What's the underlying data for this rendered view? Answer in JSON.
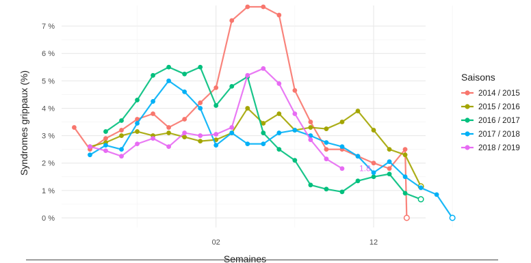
{
  "chart_data": {
    "type": "line",
    "title": "",
    "xlabel": "Semaines",
    "ylabel": "Syndromes grippaux (%)",
    "x_tick_labels": [
      {
        "label": "02",
        "x": 8
      },
      {
        "label": "12",
        "x": 18
      }
    ],
    "y_ticks": [
      0,
      1,
      2,
      3,
      4,
      5,
      6,
      7
    ],
    "y_tick_labels": [
      "0 %",
      "1 %",
      "2 %",
      "3 %",
      "4 %",
      "5 %",
      "6 %",
      "7 %"
    ],
    "xlim": [
      -1.8,
      21.3
    ],
    "ylim": [
      -0.35,
      7.75
    ],
    "grid": true,
    "legend": {
      "title": "Saisons",
      "placement": "right"
    },
    "annotation": {
      "text": "1.8",
      "series": "2018 / 2019",
      "x": 17,
      "y": 1.8
    },
    "series": [
      {
        "name": "2014 / 2015",
        "color": "#F8766D",
        "x": [
          -1,
          0,
          1,
          2,
          3,
          4,
          5,
          6,
          7,
          8,
          9,
          10,
          11,
          12,
          13,
          14,
          15,
          16,
          17,
          18,
          19,
          20
        ],
        "values": [
          3.3,
          2.5,
          2.9,
          3.2,
          3.6,
          3.8,
          3.3,
          3.6,
          4.2,
          4.75,
          7.2,
          7.7,
          7.7,
          7.4,
          4.65,
          3.5,
          2.5,
          2.5,
          2.25,
          2.0,
          1.8,
          2.5
        ],
        "end": {
          "x": 20.1,
          "y": 0.0
        }
      },
      {
        "name": "2015 / 2016",
        "color": "#A3A500",
        "x": [
          0,
          1,
          2,
          3,
          4,
          5,
          6,
          7,
          8,
          9,
          10,
          11,
          12,
          13,
          14,
          15,
          16,
          17,
          18,
          19,
          20
        ],
        "values": [
          2.6,
          2.75,
          3.0,
          3.15,
          3.0,
          3.1,
          2.95,
          2.8,
          2.85,
          3.1,
          4.0,
          3.45,
          3.8,
          3.2,
          3.3,
          3.25,
          3.5,
          3.9,
          3.2,
          2.5,
          2.3
        ],
        "end": {
          "x": 21,
          "y": 1.15
        }
      },
      {
        "name": "2016 / 2017",
        "color": "#00BF7D",
        "x": [
          1,
          2,
          3,
          4,
          5,
          6,
          7,
          8,
          9,
          10,
          11,
          12,
          13,
          14,
          15,
          16,
          17,
          18,
          19,
          20
        ],
        "values": [
          3.15,
          3.55,
          4.3,
          5.2,
          5.5,
          5.25,
          5.5,
          4.1,
          4.8,
          5.15,
          3.1,
          2.5,
          2.1,
          1.2,
          1.05,
          0.95,
          1.35,
          1.5,
          1.6,
          0.9
        ],
        "end": {
          "x": 21,
          "y": 0.68
        }
      },
      {
        "name": "2017 / 2018",
        "color": "#00B0F6",
        "x": [
          0,
          1,
          2,
          3,
          4,
          5,
          6,
          7,
          8,
          9,
          10,
          11,
          12,
          13,
          14,
          15,
          16,
          17,
          18,
          19,
          20,
          21,
          22
        ],
        "values": [
          2.3,
          2.65,
          2.5,
          3.45,
          4.25,
          5.0,
          4.6,
          4.0,
          2.65,
          3.1,
          2.7,
          2.7,
          3.1,
          3.2,
          3.0,
          2.75,
          2.6,
          2.25,
          1.65,
          2.05,
          1.5,
          1.1,
          0.85
        ],
        "end": {
          "x": 23,
          "y": 0.0
        }
      },
      {
        "name": "2018 / 2019",
        "color": "#E76BF3",
        "x": [
          0,
          1,
          2,
          3,
          4,
          5,
          6,
          7,
          8,
          9,
          10,
          11,
          12,
          13,
          14,
          15,
          16,
          17
        ],
        "values": [
          2.6,
          2.45,
          2.25,
          2.7,
          2.9,
          2.6,
          3.1,
          3.0,
          3.05,
          3.3,
          5.2,
          5.45,
          4.9,
          3.8,
          2.85,
          2.15,
          1.8,
          null
        ]
      }
    ]
  }
}
